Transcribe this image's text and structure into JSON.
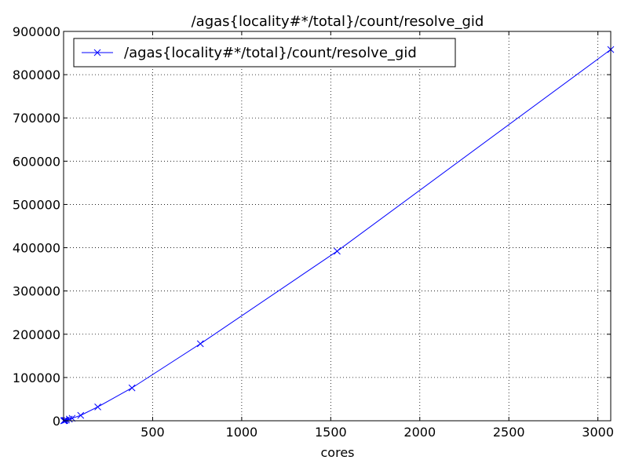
{
  "chart_data": {
    "type": "line",
    "title": "/agas{locality#*/total}/count/resolve_gid",
    "xlabel": "cores",
    "ylabel": "",
    "xlim": [
      0,
      3072
    ],
    "ylim": [
      0,
      900000
    ],
    "xticks": [
      500,
      1000,
      1500,
      2000,
      2500,
      3000
    ],
    "yticks": [
      0,
      100000,
      200000,
      300000,
      400000,
      500000,
      600000,
      700000,
      800000,
      900000
    ],
    "grid": true,
    "legend_position": "top-left",
    "series": [
      {
        "name": "/agas{locality#*/total}/count/resolve_gid",
        "color": "#0000ff",
        "marker": "x",
        "x": [
          1,
          2,
          4,
          8,
          16,
          32,
          48,
          96,
          192,
          384,
          768,
          1536,
          3072
        ],
        "y": [
          0,
          200,
          400,
          900,
          1800,
          3800,
          5800,
          12500,
          32000,
          76000,
          178000,
          392000,
          858000
        ]
      }
    ]
  }
}
